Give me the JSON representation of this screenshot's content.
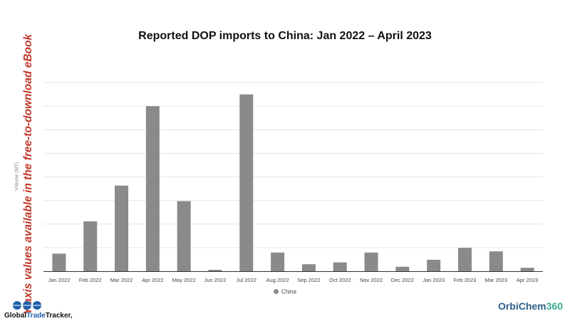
{
  "chart_data": {
    "type": "bar",
    "title": "Reported DOP imports to China: Jan 2022 – April 2023",
    "ylabel": "Volume (MT)",
    "categories": [
      "Jan 2022",
      "Feb 2022",
      "Mar 2022",
      "Apr 2022",
      "May 2022",
      "Jun 2022",
      "Jul 2022",
      "Aug 2022",
      "Sep 2022",
      "Oct 2022",
      "Nov 2022",
      "Dec 2022",
      "Jan 2023",
      "Feb 2023",
      "Mar 2023",
      "Apr 2023"
    ],
    "series": [
      {
        "name": "China",
        "color": "#8a8a8a",
        "values": [
          14.9,
          42.3,
          72.6,
          140.0,
          59.4,
          1.2,
          150.0,
          15.8,
          5.9,
          7.5,
          15.8,
          3.8,
          9.7,
          19.8,
          16.8,
          2.9
        ]
      }
    ],
    "ylim": [
      0,
      160
    ],
    "grid": true,
    "legend_position": "bottom-center"
  },
  "watermark": "Y axis values available in the free-to-download eBook",
  "logos": {
    "gtt": {
      "part1": "Global",
      "part2": "Trade",
      "part3": "Tracker,"
    },
    "orbichem": {
      "part1": "OrbiChem",
      "part2": "360"
    }
  }
}
